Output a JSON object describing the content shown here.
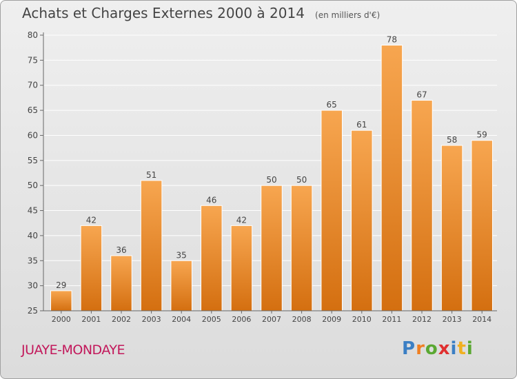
{
  "title": "Achats et Charges Externes 2000 à 2014",
  "unit_label": "(en milliers d'€)",
  "place_label": "JUAYE-MONDAYE",
  "logo_text": "Proxiti",
  "colors": {
    "bar_top": "#f7a650",
    "bar_bottom": "#d46f10",
    "title": "#444444",
    "place": "#c2185b"
  },
  "chart_data": {
    "type": "bar",
    "title": "Achats et Charges Externes 2000 à 2014",
    "subtitle": "(en milliers d'€)",
    "xlabel": "",
    "ylabel": "",
    "categories": [
      "2000",
      "2001",
      "2002",
      "2003",
      "2004",
      "2005",
      "2006",
      "2007",
      "2008",
      "2009",
      "2010",
      "2011",
      "2012",
      "2013",
      "2014"
    ],
    "values": [
      29,
      42,
      36,
      51,
      35,
      46,
      42,
      50,
      50,
      65,
      61,
      78,
      67,
      58,
      59
    ],
    "ylim": [
      25,
      80
    ],
    "yticks": [
      25,
      30,
      35,
      40,
      45,
      50,
      55,
      60,
      65,
      70,
      75,
      80
    ],
    "grid": true,
    "data_labels": true
  }
}
